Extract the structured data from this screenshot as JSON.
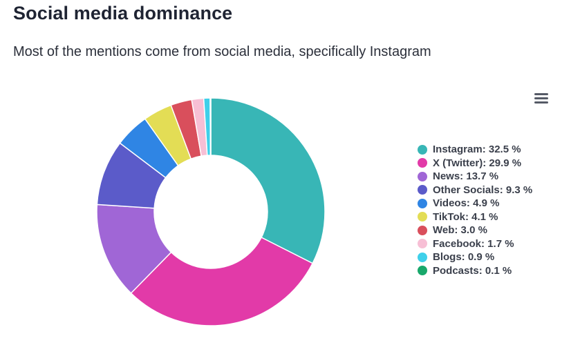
{
  "title": "Social media dominance",
  "subtitle": "Most of the mentions come from social media, specifically Instagram",
  "menu_icon": "hamburger-menu-icon",
  "chart_data": {
    "type": "pie",
    "variant": "donut",
    "title": "Social media dominance",
    "subtitle": "Most of the mentions come from social media, specifically Instagram",
    "legend_position": "right",
    "categories": [
      "Instagram",
      "X (Twitter)",
      "News",
      "Other Socials",
      "Videos",
      "TikTok",
      "Web",
      "Facebook",
      "Blogs",
      "Podcasts"
    ],
    "values": [
      32.5,
      29.9,
      13.7,
      9.3,
      4.9,
      4.1,
      3.0,
      1.7,
      0.9,
      0.1
    ],
    "colors": [
      "#38b6b6",
      "#e23aa8",
      "#a066d6",
      "#5b5bc9",
      "#2f85e4",
      "#e3dd55",
      "#d94f5c",
      "#f7bfd5",
      "#3fd0ea",
      "#18a86b"
    ],
    "legend_labels": [
      "Instagram: 32.5 %",
      "X (Twitter): 29.9 %",
      "News: 13.7 %",
      "Other Socials: 9.3 %",
      "Videos: 4.9 %",
      "TikTok: 4.1 %",
      "Web: 3.0 %",
      "Facebook: 1.7 %",
      "Blogs: 0.9 %",
      "Podcasts: 0.1 %"
    ]
  }
}
